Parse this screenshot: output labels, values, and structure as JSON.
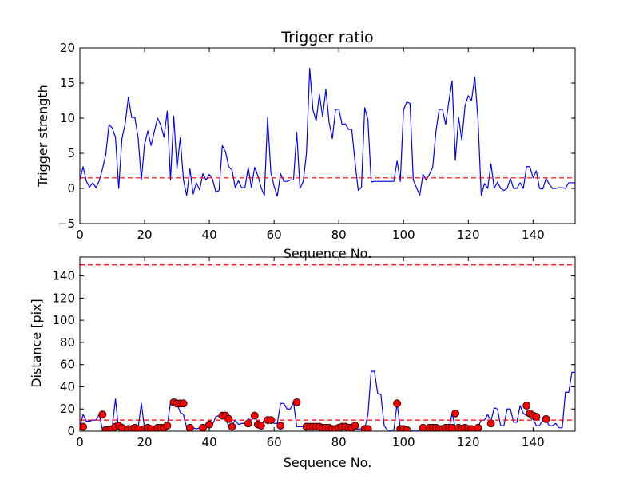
{
  "chart_data": [
    {
      "type": "line",
      "title": "Trigger ratio",
      "xlabel": "Sequence No.",
      "ylabel": "Trigger strength",
      "xlim": [
        0,
        153
      ],
      "ylim": [
        -5,
        20
      ],
      "xticks": [
        0,
        20,
        40,
        60,
        80,
        100,
        120,
        140
      ],
      "yticks": [
        -5,
        0,
        5,
        10,
        15,
        20
      ],
      "grid": false,
      "series": [
        {
          "color": "#0000ff",
          "style": "solid",
          "x": [
            0,
            1,
            2,
            3,
            4,
            5,
            6,
            7,
            8,
            9,
            10,
            11,
            12,
            13,
            14,
            15,
            16,
            17,
            18,
            19,
            20,
            21,
            22,
            23,
            24,
            25,
            26,
            27,
            28,
            29,
            30,
            31,
            32,
            33,
            34,
            35,
            36,
            37,
            38,
            39,
            40,
            41,
            42,
            43,
            44,
            45,
            46,
            47,
            48,
            49,
            50,
            51,
            52,
            53,
            54,
            55,
            56,
            57,
            58,
            59,
            60,
            61,
            62,
            63,
            64,
            65,
            66,
            67,
            68,
            69,
            70,
            71,
            72,
            73,
            74,
            75,
            76,
            77,
            78,
            79,
            80,
            81,
            82,
            83,
            84,
            85,
            86,
            87,
            88,
            89,
            90,
            91,
            92,
            93,
            94,
            95,
            96,
            97,
            98,
            99,
            100,
            101,
            102,
            103,
            104,
            105,
            106,
            107,
            108,
            109,
            110,
            111,
            112,
            113,
            114,
            115,
            116,
            117,
            118,
            119,
            120,
            121,
            122,
            123,
            124,
            125,
            126,
            127,
            128,
            129,
            130,
            131,
            132,
            133,
            134,
            135,
            136,
            137,
            138,
            139,
            140,
            141,
            142,
            143,
            144,
            145,
            146,
            147,
            148,
            149,
            150,
            151,
            152,
            153
          ],
          "y": [
            1.2,
            3.1,
            1.0,
            0.2,
            0.8,
            0.1,
            1.1,
            2.8,
            4.8,
            9.1,
            8.6,
            7.3,
            0.0,
            7.1,
            9.2,
            13.0,
            10.1,
            10.1,
            7.2,
            1.2,
            6.3,
            8.2,
            6.1,
            8.1,
            10.0,
            9.0,
            7.3,
            11.0,
            1.2,
            10.3,
            2.8,
            7.2,
            1.2,
            -1.0,
            2.8,
            -0.8,
            0.8,
            -0.2,
            2.1,
            1.2,
            2.0,
            1.3,
            -0.5,
            -0.3,
            6.1,
            5.2,
            3.1,
            2.6,
            0.1,
            1.1,
            0.1,
            0.1,
            3.0,
            0.1,
            3.0,
            1.8,
            0.1,
            -1.0,
            10.1,
            2.3,
            0.3,
            -1.1,
            2.1,
            1.0,
            1.0,
            1.2,
            1.2,
            8.0,
            0.0,
            1.0,
            5.0,
            17.1,
            11.2,
            9.6,
            13.4,
            10.2,
            14.1,
            9.4,
            7.1,
            11.2,
            11.3,
            9.1,
            9.2,
            8.4,
            8.4,
            3.8,
            -0.3,
            0.2,
            11.5,
            9.8,
            0.9,
            1.0,
            1.0,
            1.0,
            1.0,
            1.0,
            1.0,
            1.0,
            3.9,
            1.0,
            11.2,
            12.3,
            12.1,
            1.2,
            0.1,
            -1.0,
            2.0,
            1.2,
            2.0,
            3.0,
            8.1,
            11.2,
            11.3,
            9.1,
            12.4,
            15.3,
            4.0,
            10.1,
            6.9,
            11.8,
            13.2,
            12.5,
            15.9,
            9.8,
            -1.0,
            0.7,
            0.0,
            3.5,
            0.0,
            0.9,
            0.0,
            -0.3,
            0.0,
            1.4,
            0.0,
            0.0,
            0.8,
            0.0,
            3.1,
            3.1,
            1.5,
            2.5,
            0.0,
            -0.1,
            1.4,
            0.6,
            0.0,
            0.0,
            0.1,
            0.1,
            0.0,
            0.8,
            0.8,
            0.8
          ]
        },
        {
          "color": "#ff0000",
          "style": "dashed",
          "x": [
            0,
            153
          ],
          "y": [
            1.5,
            1.5
          ]
        }
      ]
    },
    {
      "type": "line",
      "title": "",
      "xlabel": "Sequence No.",
      "ylabel": "Distance [pix]",
      "xlim": [
        0,
        153
      ],
      "ylim": [
        0,
        157
      ],
      "xticks": [
        0,
        20,
        40,
        60,
        80,
        100,
        120,
        140
      ],
      "yticks": [
        0,
        20,
        40,
        60,
        80,
        100,
        120,
        140
      ],
      "grid": false,
      "series": [
        {
          "color": "#0000ff",
          "style": "solid",
          "markers": false,
          "x": [
            0,
            1,
            2,
            3,
            4,
            5,
            6,
            7,
            8,
            9,
            10,
            11,
            12,
            13,
            14,
            15,
            16,
            17,
            18,
            19,
            20,
            21,
            22,
            23,
            24,
            25,
            26,
            27,
            28,
            29,
            30,
            31,
            32,
            33,
            34,
            35,
            36,
            37,
            38,
            39,
            40,
            41,
            42,
            43,
            44,
            45,
            46,
            47,
            48,
            49,
            50,
            51,
            52,
            53,
            54,
            55,
            56,
            57,
            58,
            59,
            60,
            61,
            62,
            63,
            64,
            65,
            66,
            67,
            68,
            69,
            70,
            71,
            72,
            73,
            74,
            75,
            76,
            77,
            78,
            79,
            80,
            81,
            82,
            83,
            84,
            85,
            86,
            87,
            88,
            89,
            90,
            91,
            92,
            93,
            94,
            95,
            96,
            97,
            98,
            99,
            100,
            101,
            102,
            103,
            104,
            105,
            106,
            107,
            108,
            109,
            110,
            111,
            112,
            113,
            114,
            115,
            116,
            117,
            118,
            119,
            120,
            121,
            122,
            123,
            124,
            125,
            126,
            127,
            128,
            129,
            130,
            131,
            132,
            133,
            134,
            135,
            136,
            137,
            138,
            139,
            140,
            141,
            142,
            143,
            144,
            145,
            146,
            147,
            148,
            149,
            150,
            151,
            152,
            153
          ],
          "y": [
            4,
            15,
            9,
            9,
            10,
            10,
            15,
            1,
            1,
            2,
            4,
            29,
            1,
            2,
            2,
            2,
            3,
            3,
            3,
            25,
            2,
            2,
            2,
            3,
            3,
            3,
            5,
            5,
            26,
            26,
            25,
            17,
            15,
            3,
            4,
            3,
            2,
            3,
            5,
            6,
            6,
            6,
            13,
            14,
            14,
            11,
            5,
            6,
            10,
            6,
            7,
            7,
            11,
            10,
            14,
            6,
            6,
            10,
            10,
            10,
            7,
            7,
            25,
            25,
            20,
            20,
            26,
            4,
            4,
            4,
            4,
            4,
            3,
            3,
            3,
            2,
            2,
            2,
            3,
            3,
            4,
            4,
            3,
            3,
            5,
            2,
            2,
            2,
            2,
            15,
            54,
            54,
            34,
            33,
            5,
            1,
            1,
            1,
            25,
            3,
            2,
            1,
            1,
            1,
            1,
            1,
            2,
            2,
            2,
            2,
            2,
            2,
            3,
            3,
            2,
            16,
            3,
            3,
            3,
            3,
            3,
            2,
            2,
            4,
            10,
            10,
            15,
            9,
            21,
            20,
            5,
            5,
            20,
            20,
            8,
            8,
            23,
            16,
            14,
            13,
            11,
            5,
            5,
            10,
            10,
            5,
            5,
            7,
            3,
            3,
            35,
            35,
            53,
            53
          ]
        },
        {
          "color": "#ff0000",
          "style": "markers",
          "marker": "circle",
          "x": [
            1,
            7,
            8,
            9,
            10,
            11,
            12,
            13,
            15,
            16,
            17,
            18,
            20,
            21,
            22,
            24,
            25,
            26,
            27,
            29,
            30,
            31,
            32,
            34,
            38,
            40,
            44,
            45,
            46,
            47,
            52,
            54,
            55,
            56,
            58,
            59,
            62,
            67,
            70,
            71,
            72,
            73,
            74,
            75,
            76,
            77,
            78,
            79,
            80,
            81,
            82,
            83,
            84,
            85,
            88,
            89,
            98,
            99,
            100,
            101,
            106,
            108,
            109,
            110,
            111,
            112,
            113,
            114,
            115,
            116,
            117,
            118,
            119,
            120,
            121,
            123,
            127,
            138,
            139,
            140,
            141,
            144
          ],
          "y": [
            4,
            15,
            1,
            1,
            2,
            4,
            5,
            3,
            2,
            2,
            3,
            2,
            2,
            3,
            2,
            3,
            3,
            3,
            5,
            26,
            25,
            25,
            25,
            3,
            3,
            6,
            14,
            14,
            11,
            4,
            7,
            14,
            6,
            5,
            10,
            10,
            5,
            26,
            4,
            4,
            4,
            4,
            4,
            3,
            3,
            3,
            2,
            2,
            3,
            4,
            4,
            3,
            3,
            5,
            2,
            2,
            25,
            2,
            2,
            1,
            3,
            3,
            3,
            3,
            2,
            2,
            3,
            3,
            3,
            16,
            3,
            2,
            3,
            2,
            2,
            3,
            7,
            23,
            16,
            14,
            13,
            11
          ]
        },
        {
          "color": "#ff0000",
          "style": "dashed",
          "x": [
            0,
            153
          ],
          "y": [
            10,
            10
          ]
        },
        {
          "color": "#ff0000",
          "style": "dashed",
          "x": [
            0,
            153
          ],
          "y": [
            150,
            150
          ]
        }
      ]
    }
  ]
}
